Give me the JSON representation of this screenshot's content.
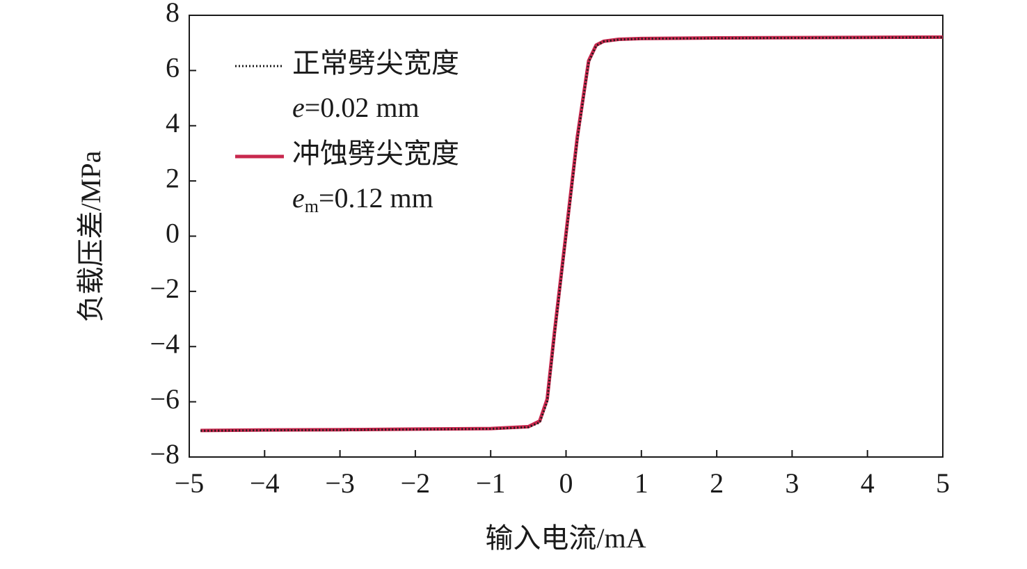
{
  "chart_data": {
    "type": "line",
    "xlabel": "输入电流/mA",
    "ylabel": "负载压差/MPa",
    "xlim": [
      -5,
      5
    ],
    "ylim": [
      -8,
      8
    ],
    "xticks": [
      {
        "value": -5,
        "label": "−5"
      },
      {
        "value": -4,
        "label": "−4"
      },
      {
        "value": -3,
        "label": "−3"
      },
      {
        "value": -2,
        "label": "−2"
      },
      {
        "value": -1,
        "label": "−1"
      },
      0,
      1,
      2,
      3,
      4,
      5
    ],
    "yticks": [
      {
        "value": -8,
        "label": "−8"
      },
      {
        "value": -6,
        "label": "−6"
      },
      {
        "value": -4,
        "label": "−4"
      },
      {
        "value": -2,
        "label": "−2"
      },
      0,
      2,
      4,
      6,
      8
    ],
    "grid": false,
    "legend": "upper left",
    "x": [
      -4.85,
      -4,
      -3,
      -2,
      -1,
      -0.5,
      -0.35,
      -0.25,
      -0.15,
      0,
      0.15,
      0.3,
      0.4,
      0.5,
      0.7,
      1,
      2,
      3,
      4,
      5
    ],
    "series": [
      {
        "name": "正常劈尖宽度",
        "label_parts": [
          "e",
          "=0.02 mm"
        ],
        "color": "#1a1a1a",
        "dash": "dotted",
        "values": [
          -7.05,
          -7.03,
          -7.02,
          -7.0,
          -6.98,
          -6.92,
          -6.75,
          -6.0,
          -3.5,
          0,
          3.5,
          6.3,
          6.9,
          7.05,
          7.12,
          7.15,
          7.17,
          7.18,
          7.19,
          7.2
        ]
      },
      {
        "name": "冲蚀劈尖宽度",
        "label_parts": [
          "e",
          "m",
          "=0.12 mm"
        ],
        "color": "#c8284e",
        "dash": "solid",
        "values": [
          -7.04,
          -7.02,
          -7.01,
          -6.99,
          -6.97,
          -6.9,
          -6.7,
          -5.9,
          -3.4,
          0.1,
          3.6,
          6.35,
          6.92,
          7.06,
          7.13,
          7.16,
          7.18,
          7.19,
          7.2,
          7.21
        ]
      }
    ]
  }
}
